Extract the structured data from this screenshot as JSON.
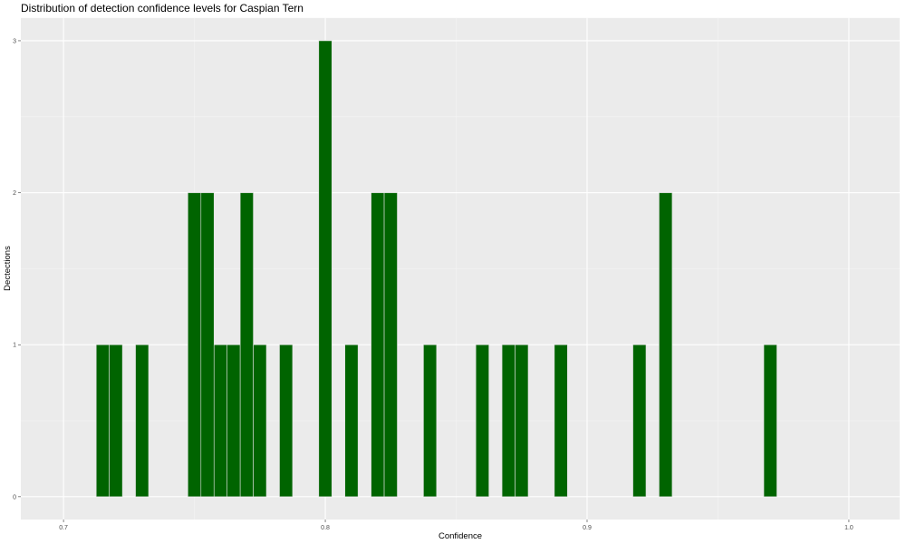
{
  "chart_data": {
    "type": "bar",
    "title": "Distribution of detection confidence levels for Caspian Tern",
    "xlabel": "Confidence",
    "ylabel": "Dectections",
    "xlim": [
      0.6837,
      1.0194
    ],
    "ylim": [
      -0.15,
      3.15
    ],
    "x_ticks": [
      "0.7",
      "0.8",
      "0.9",
      "1.0"
    ],
    "y_ticks": [
      "0",
      "1",
      "2",
      "3"
    ],
    "binwidth": 0.005,
    "grid": true,
    "bar_color": "#006400",
    "bar_outline": "#e0e0e0",
    "panel_background": "#ebebeb",
    "x": [
      0.715,
      0.72,
      0.73,
      0.75,
      0.755,
      0.76,
      0.765,
      0.77,
      0.775,
      0.785,
      0.8,
      0.81,
      0.82,
      0.825,
      0.84,
      0.86,
      0.87,
      0.875,
      0.89,
      0.92,
      0.93,
      0.97
    ],
    "values": [
      1,
      1,
      1,
      2,
      2,
      1,
      1,
      2,
      1,
      1,
      3,
      1,
      2,
      2,
      1,
      1,
      1,
      1,
      1,
      1,
      2,
      1
    ]
  }
}
